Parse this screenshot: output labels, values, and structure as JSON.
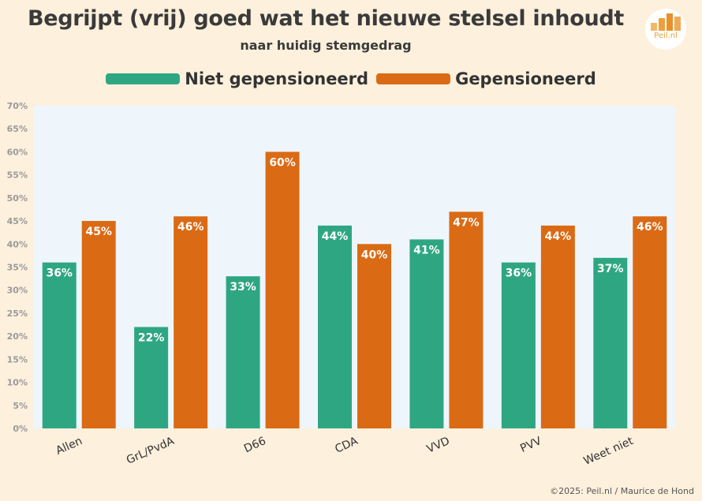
{
  "title": "Begrijpt (vrij) goed wat het nieuwe stelsel inhoudt",
  "subtitle": "naar huidig stemgedrag",
  "logo": {
    "text": "Peil.nl",
    "icon": "bar-chart-icon",
    "color": "#e8a33a"
  },
  "credit": "©2025: Peil.nl / Maurice de Hond",
  "colors": {
    "niet": "#2fa682",
    "gep": "#db6a15",
    "plot_bg": "#eef6fc",
    "page_bg": "#fdf0dc"
  },
  "chart_data": {
    "type": "bar",
    "title": "Begrijpt (vrij) goed wat het nieuwe stelsel inhoudt",
    "subtitle": "naar huidig stemgedrag",
    "categories": [
      "Allen",
      "GrL/PvdA",
      "D66",
      "CDA",
      "VVD",
      "PVV",
      "Weet niet"
    ],
    "series": [
      {
        "name": "Niet gepensioneerd",
        "values": [
          36,
          22,
          33,
          44,
          41,
          36,
          37
        ]
      },
      {
        "name": "Gepensioneerd",
        "values": [
          45,
          46,
          60,
          40,
          47,
          44,
          46
        ]
      }
    ],
    "ylim": [
      0,
      70
    ],
    "yticks": [
      "0%",
      "5%",
      "10%",
      "15%",
      "20%",
      "25%",
      "30%",
      "35%",
      "40%",
      "45%",
      "50%",
      "55%",
      "60%",
      "65%",
      "70%"
    ],
    "value_suffix": "%",
    "legend": "top-center",
    "grid": false
  }
}
